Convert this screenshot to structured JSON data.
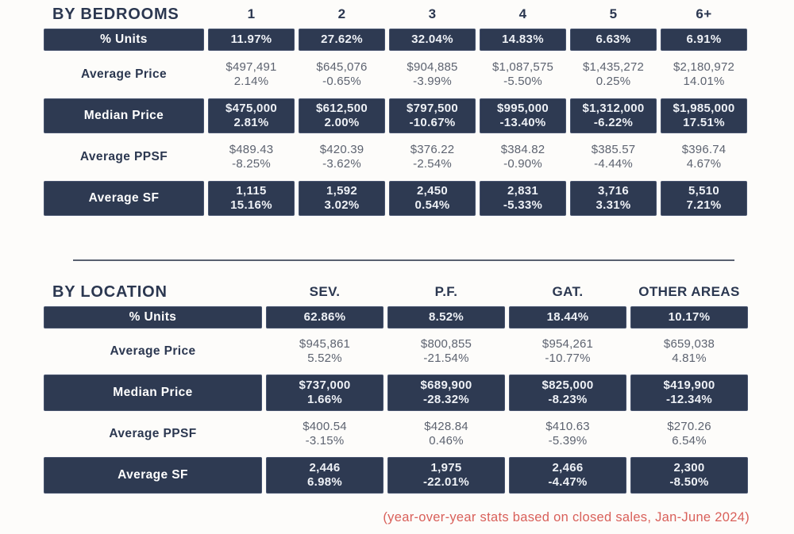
{
  "colors": {
    "navy": "#2e3a52",
    "note_red": "#d9605a",
    "background": "#fdfcfa"
  },
  "footer": {
    "note": "(year-over-year stats based on closed sales, Jan-June 2024)"
  },
  "chart_data": [
    {
      "type": "table",
      "title": "BY BEDROOMS",
      "columns": [
        "1",
        "2",
        "3",
        "4",
        "5",
        "6+"
      ],
      "rows": [
        {
          "label": "% Units",
          "style": "dark",
          "cells": [
            [
              "11.97%"
            ],
            [
              "27.62%"
            ],
            [
              "32.04%"
            ],
            [
              "14.83%"
            ],
            [
              "6.63%"
            ],
            [
              "6.91%"
            ]
          ]
        },
        {
          "label": "Average Price",
          "style": "light",
          "cells": [
            [
              "$497,491",
              "2.14%"
            ],
            [
              "$645,076",
              "-0.65%"
            ],
            [
              "$904,885",
              "-3.99%"
            ],
            [
              "$1,087,575",
              "-5.50%"
            ],
            [
              "$1,435,272",
              "0.25%"
            ],
            [
              "$2,180,972",
              "14.01%"
            ]
          ]
        },
        {
          "label": "Median Price",
          "style": "dark",
          "cells": [
            [
              "$475,000",
              "2.81%"
            ],
            [
              "$612,500",
              "2.00%"
            ],
            [
              "$797,500",
              "-10.67%"
            ],
            [
              "$995,000",
              "-13.40%"
            ],
            [
              "$1,312,000",
              "-6.22%"
            ],
            [
              "$1,985,000",
              "17.51%"
            ]
          ]
        },
        {
          "label": "Average PPSF",
          "style": "light",
          "cells": [
            [
              "$489.43",
              "-8.25%"
            ],
            [
              "$420.39",
              "-3.62%"
            ],
            [
              "$376.22",
              "-2.54%"
            ],
            [
              "$384.82",
              "-0.90%"
            ],
            [
              "$385.57",
              "-4.44%"
            ],
            [
              "$396.74",
              "4.67%"
            ]
          ]
        },
        {
          "label": "Average SF",
          "style": "dark",
          "cells": [
            [
              "1,115",
              "15.16%"
            ],
            [
              "1,592",
              "3.02%"
            ],
            [
              "2,450",
              "0.54%"
            ],
            [
              "2,831",
              "-5.33%"
            ],
            [
              "3,716",
              "3.31%"
            ],
            [
              "5,510",
              "7.21%"
            ]
          ]
        }
      ]
    },
    {
      "type": "table",
      "title": "BY LOCATION",
      "columns": [
        "SEV.",
        "P.F.",
        "GAT.",
        "OTHER AREAS"
      ],
      "rows": [
        {
          "label": "% Units",
          "style": "dark",
          "cells": [
            [
              "62.86%"
            ],
            [
              "8.52%"
            ],
            [
              "18.44%"
            ],
            [
              "10.17%"
            ]
          ]
        },
        {
          "label": "Average Price",
          "style": "light",
          "cells": [
            [
              "$945,861",
              "5.52%"
            ],
            [
              "$800,855",
              "-21.54%"
            ],
            [
              "$954,261",
              "-10.77%"
            ],
            [
              "$659,038",
              "4.81%"
            ]
          ]
        },
        {
          "label": "Median Price",
          "style": "dark",
          "cells": [
            [
              "$737,000",
              "1.66%"
            ],
            [
              "$689,900",
              "-28.32%"
            ],
            [
              "$825,000",
              "-8.23%"
            ],
            [
              "$419,900",
              "-12.34%"
            ]
          ]
        },
        {
          "label": "Average PPSF",
          "style": "light",
          "cells": [
            [
              "$400.54",
              "-3.15%"
            ],
            [
              "$428.84",
              "0.46%"
            ],
            [
              "$410.63",
              "-5.39%"
            ],
            [
              "$270.26",
              "6.54%"
            ]
          ]
        },
        {
          "label": "Average SF",
          "style": "dark",
          "cells": [
            [
              "2,446",
              "6.98%"
            ],
            [
              "1,975",
              "-22.01%"
            ],
            [
              "2,466",
              "-4.47%"
            ],
            [
              "2,300",
              "-8.50%"
            ]
          ]
        }
      ]
    }
  ]
}
